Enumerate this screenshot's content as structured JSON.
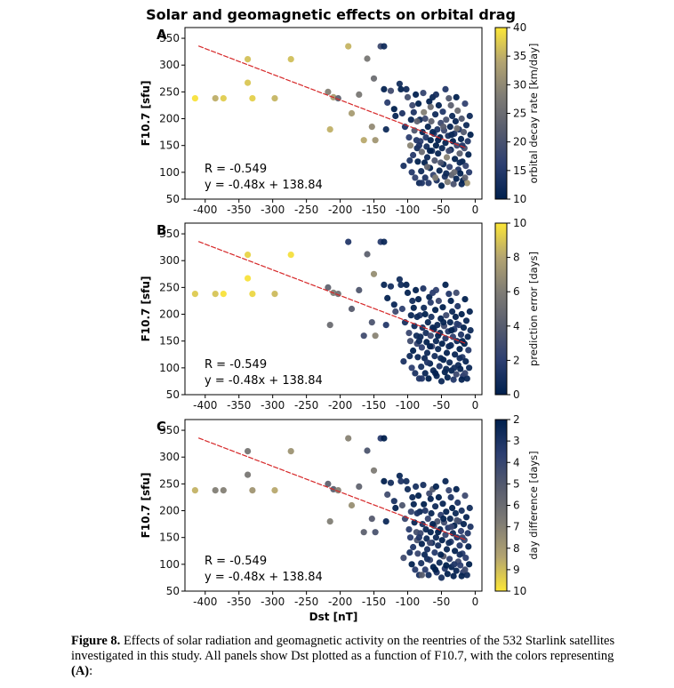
{
  "figure_title": "Solar and geomagnetic effects on orbital drag",
  "caption": {
    "label": "Figure 8.",
    "text": "Effects of solar radiation and geomagnetic activity on the reentries of the 532 Starlink satellites investigated in this study. All panels show Dst plotted as a function of F10.7, with the colors representing",
    "tail_label": "(A)",
    "tail_rest": ":"
  },
  "colors": {
    "cividis_low": "#00204d",
    "cividis_high": "#fde737",
    "fit_line": "#d62728"
  },
  "chart_data": {
    "type": "scatter",
    "xlabel": "Dst [nT]",
    "ylabel": "F10.7 [sfu]",
    "xlim": [
      -430,
      10
    ],
    "ylim": [
      50,
      370
    ],
    "xticks": [
      -400,
      -350,
      -300,
      -250,
      -200,
      -150,
      -100,
      -50,
      0
    ],
    "yticks": [
      50,
      100,
      150,
      200,
      250,
      300,
      350
    ],
    "fit": {
      "slope": -0.48,
      "intercept": 138.84,
      "x_range": [
        -410,
        -15
      ],
      "r_text": "R = -0.549",
      "eq_text": "y = -0.48x + 138.84"
    },
    "points": [
      [
        -415,
        238
      ],
      [
        -385,
        238
      ],
      [
        -373,
        238
      ],
      [
        -337,
        311
      ],
      [
        -337,
        267
      ],
      [
        -330,
        238
      ],
      [
        -297,
        238
      ],
      [
        -273,
        311
      ],
      [
        -218,
        250
      ],
      [
        -215,
        180
      ],
      [
        -210,
        240
      ],
      [
        -203,
        238
      ],
      [
        -188,
        335
      ],
      [
        -183,
        210
      ],
      [
        -172,
        245
      ],
      [
        -165,
        160
      ],
      [
        -160,
        312
      ],
      [
        -153,
        185
      ],
      [
        -150,
        275
      ],
      [
        -148,
        160
      ],
      [
        -140,
        335
      ],
      [
        -135,
        335
      ],
      [
        -135,
        255
      ],
      [
        -132,
        180
      ],
      [
        -130,
        230
      ],
      [
        -125,
        252
      ],
      [
        -120,
        218
      ],
      [
        -118,
        205
      ],
      [
        -112,
        265
      ],
      [
        -110,
        255
      ],
      [
        -108,
        210
      ],
      [
        -106,
        112
      ],
      [
        -104,
        185
      ],
      [
        -102,
        255
      ],
      [
        -100,
        240
      ],
      [
        -98,
        165
      ],
      [
        -96,
        150
      ],
      [
        -95,
        198
      ],
      [
        -93,
        225
      ],
      [
        -92,
        132
      ],
      [
        -90,
        178
      ],
      [
        -89,
        90
      ],
      [
        -88,
        245
      ],
      [
        -87,
        160
      ],
      [
        -86,
        145
      ],
      [
        -85,
        120
      ],
      [
        -84,
        228
      ],
      [
        -83,
        80
      ],
      [
        -82,
        198
      ],
      [
        -81,
        158
      ],
      [
        -80,
        102
      ],
      [
        -79,
        138
      ],
      [
        -78,
        175
      ],
      [
        -77,
        248
      ],
      [
        -76,
        212
      ],
      [
        -75,
        118
      ],
      [
        -74,
        90
      ],
      [
        -73,
        165
      ],
      [
        -72,
        148
      ],
      [
        -71,
        128
      ],
      [
        -70,
        185
      ],
      [
        -69,
        80
      ],
      [
        -68,
        232
      ],
      [
        -67,
        108
      ],
      [
        -66,
        160
      ],
      [
        -65,
        195
      ],
      [
        -64,
        140
      ],
      [
        -63,
        240
      ],
      [
        -62,
        95
      ],
      [
        -61,
        172
      ],
      [
        -60,
        122
      ],
      [
        -59,
        208
      ],
      [
        -58,
        150
      ],
      [
        -57,
        85
      ],
      [
        -56,
        180
      ],
      [
        -55,
        135
      ],
      [
        -54,
        225
      ],
      [
        -53,
        103
      ],
      [
        -52,
        165
      ],
      [
        -51,
        192
      ],
      [
        -50,
        75
      ],
      [
        -49,
        145
      ],
      [
        -48,
        213
      ],
      [
        -47,
        115
      ],
      [
        -46,
        178
      ],
      [
        -45,
        92
      ],
      [
        -44,
        155
      ],
      [
        -43,
        198
      ],
      [
        -42,
        128
      ],
      [
        -41,
        82
      ],
      [
        -40,
        168
      ],
      [
        -39,
        238
      ],
      [
        -38,
        110
      ],
      [
        -37,
        185
      ],
      [
        -36,
        142
      ],
      [
        -35,
        95
      ],
      [
        -34,
        205
      ],
      [
        -33,
        158
      ],
      [
        -32,
        78
      ],
      [
        -31,
        172
      ],
      [
        -30,
        125
      ],
      [
        -29,
        195
      ],
      [
        -28,
        88
      ],
      [
        -27,
        150
      ],
      [
        -26,
        215
      ],
      [
        -25,
        105
      ],
      [
        -24,
        180
      ],
      [
        -23,
        135
      ],
      [
        -22,
        98
      ],
      [
        -21,
        162
      ],
      [
        -20,
        200
      ],
      [
        -19,
        120
      ],
      [
        -18,
        85
      ],
      [
        -17,
        175
      ],
      [
        -16,
        145
      ],
      [
        -15,
        228
      ],
      [
        -14,
        112
      ],
      [
        -13,
        188
      ],
      [
        -12,
        80
      ],
      [
        -11,
        158
      ],
      [
        -10,
        133
      ],
      [
        -9,
        100
      ],
      [
        -8,
        205
      ],
      [
        -7,
        170
      ],
      [
        -97,
        122
      ],
      [
        -94,
        100
      ],
      [
        -91,
        212
      ],
      [
        -86,
        195
      ],
      [
        -83,
        150
      ],
      [
        -79,
        80
      ],
      [
        -74,
        200
      ],
      [
        -71,
        110
      ],
      [
        -67,
        140
      ],
      [
        -63,
        175
      ],
      [
        -59,
        90
      ],
      [
        -55,
        160
      ],
      [
        -51,
        118
      ],
      [
        -47,
        185
      ],
      [
        -43,
        98
      ],
      [
        -39,
        140
      ],
      [
        -35,
        170
      ],
      [
        -31,
        100
      ],
      [
        -27,
        182
      ],
      [
        -23,
        118
      ],
      [
        -19,
        150
      ],
      [
        -15,
        90
      ],
      [
        -66,
        222
      ],
      [
        -58,
        245
      ],
      [
        -44,
        255
      ],
      [
        -36,
        225
      ],
      [
        -28,
        240
      ],
      [
        -20,
        78
      ]
    ],
    "panels": [
      {
        "letter": "A",
        "cbar_label": "orbital decay rate [km/day]",
        "cbar_ticks": [
          10,
          15,
          20,
          25,
          30,
          35,
          40
        ],
        "cbar_min": 10,
        "cbar_max": 40,
        "cbar_reverse": false,
        "stat_r": "R = -0.549",
        "stat_eq": "y = -0.48x + 138.84"
      },
      {
        "letter": "B",
        "cbar_label": "prediction error [days]",
        "cbar_ticks": [
          0,
          2,
          4,
          6,
          8,
          10
        ],
        "cbar_min": 0,
        "cbar_max": 10,
        "cbar_reverse": false,
        "stat_r": "R = -0.549",
        "stat_eq": "y = -0.48x + 138.84"
      },
      {
        "letter": "C",
        "cbar_label": "day difference [days]",
        "cbar_ticks": [
          2,
          3,
          4,
          5,
          6,
          7,
          8,
          9,
          10
        ],
        "cbar_min": 2,
        "cbar_max": 10,
        "cbar_reverse": true,
        "stat_r": "R = -0.549",
        "stat_eq": "y = -0.48x + 138.84"
      }
    ]
  }
}
